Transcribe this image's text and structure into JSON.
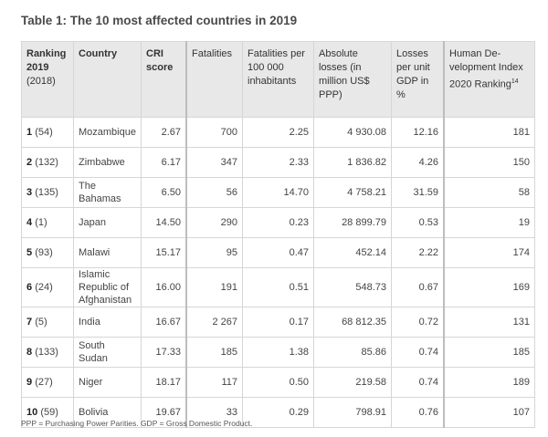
{
  "title": "Table 1: The 10 most affected countries in 2019",
  "headers": {
    "ranking_bold": "Ranking 2019",
    "ranking_sub": "(2018)",
    "country": "Country",
    "cri": "CRI score",
    "fatalities": "Fatalities",
    "fatalities_per": "Fatalities per 100 000 inhabitants",
    "absolute_losses": "Absolute losses (in million US$ PPP)",
    "losses_gdp": "Losses per unit GDP in %",
    "hdi": "Human De-velopment Index 2020 Ranking",
    "hdi_sup": "14"
  },
  "rows": [
    {
      "rank": "1",
      "prev": "(54)",
      "country": "Mozambique",
      "cri": "2.67",
      "fatalities": "700",
      "per100k": "2.25",
      "losses": "4 930.08",
      "gdp": "12.16",
      "hdi": "181"
    },
    {
      "rank": "2",
      "prev": "(132)",
      "country": "Zimbabwe",
      "cri": "6.17",
      "fatalities": "347",
      "per100k": "2.33",
      "losses": "1 836.82",
      "gdp": "4.26",
      "hdi": "150"
    },
    {
      "rank": "3",
      "prev": "(135)",
      "country": "The Bahamas",
      "cri": "6.50",
      "fatalities": "56",
      "per100k": "14.70",
      "losses": "4 758.21",
      "gdp": "31.59",
      "hdi": "58"
    },
    {
      "rank": "4",
      "prev": "(1)",
      "country": "Japan",
      "cri": "14.50",
      "fatalities": "290",
      "per100k": "0.23",
      "losses": "28 899.79",
      "gdp": "0.53",
      "hdi": "19"
    },
    {
      "rank": "5",
      "prev": "(93)",
      "country": "Malawi",
      "cri": "15.17",
      "fatalities": "95",
      "per100k": "0.47",
      "losses": "452.14",
      "gdp": "2.22",
      "hdi": "174"
    },
    {
      "rank": "6",
      "prev": "(24)",
      "country": "Islamic Republic of Afghanistan",
      "cri": "16.00",
      "fatalities": "191",
      "per100k": "0.51",
      "losses": "548.73",
      "gdp": "0.67",
      "hdi": "169"
    },
    {
      "rank": "7",
      "prev": "(5)",
      "country": "India",
      "cri": "16.67",
      "fatalities": "2 267",
      "per100k": "0.17",
      "losses": "68 812.35",
      "gdp": "0.72",
      "hdi": "131"
    },
    {
      "rank": "8",
      "prev": "(133)",
      "country": "South Sudan",
      "cri": "17.33",
      "fatalities": "185",
      "per100k": "1.38",
      "losses": "85.86",
      "gdp": "0.74",
      "hdi": "185"
    },
    {
      "rank": "9",
      "prev": "(27)",
      "country": "Niger",
      "cri": "18.17",
      "fatalities": "117",
      "per100k": "0.50",
      "losses": "219.58",
      "gdp": "0.74",
      "hdi": "189"
    },
    {
      "rank": "10",
      "prev": "(59)",
      "country": "Bolivia",
      "cri": "19.67",
      "fatalities": "33",
      "per100k": "0.29",
      "losses": "798.91",
      "gdp": "0.76",
      "hdi": "107"
    }
  ],
  "footer": "PPP = Purchasing Power Parities. GDP = Gross Domestic Product."
}
